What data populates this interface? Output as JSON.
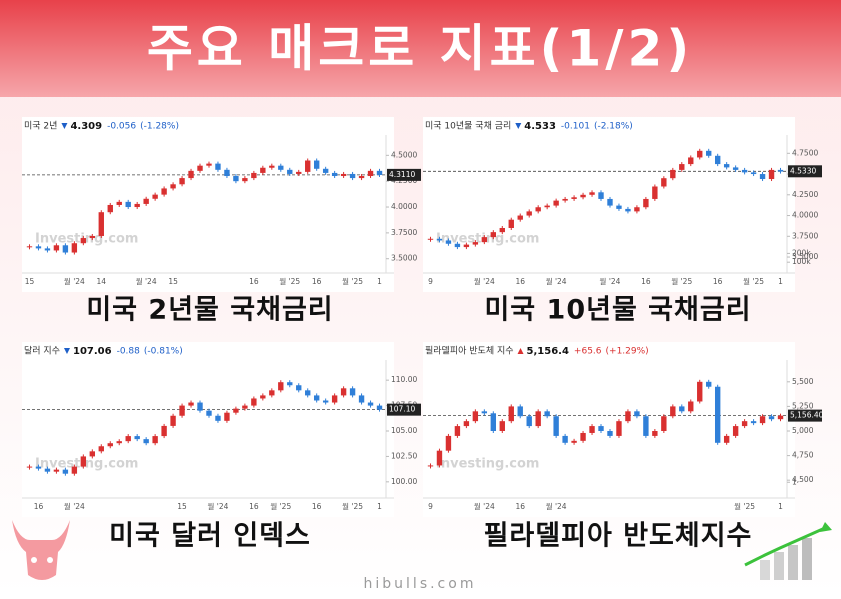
{
  "header": {
    "title": "주요 매크로 지표(1/2)"
  },
  "footer": {
    "site": "hibulls.com"
  },
  "charts": [
    {
      "type": "candlestick",
      "name": "미국 2년",
      "price": "4.309",
      "change": "-0.056",
      "pct": "(-1.28%)",
      "direction": "down",
      "change_color": "#1e5fc8",
      "caption": "미국 2년물 국채금리",
      "watermark": "Investing.com",
      "up_color": "#d93030",
      "down_color": "#2f7fd8",
      "current": {
        "value": 4.311,
        "label": "4.3110"
      },
      "ylim": [
        3.42,
        4.6
      ],
      "yticks": [
        {
          "value": 3.5,
          "label": "3.5000"
        },
        {
          "value": 3.75,
          "label": "3.7500"
        },
        {
          "value": 4.0,
          "label": "4.0000"
        },
        {
          "value": 4.25,
          "label": "4.2500"
        },
        {
          "value": 4.5,
          "label": "4.5000"
        }
      ],
      "categories": [
        "15",
        null,
        null,
        null,
        null,
        "월 '24",
        null,
        null,
        "14",
        null,
        null,
        null,
        null,
        "월 '24",
        null,
        null,
        "15",
        null,
        null,
        null,
        null,
        null,
        null,
        null,
        null,
        "16",
        null,
        null,
        null,
        "월 '25",
        null,
        null,
        "16",
        null,
        null,
        null,
        "월 '25",
        null,
        null,
        "1"
      ],
      "values": [
        3.62,
        3.6,
        3.58,
        3.63,
        3.56,
        3.65,
        3.7,
        3.72,
        3.95,
        4.02,
        4.05,
        4.0,
        4.03,
        4.08,
        4.12,
        4.18,
        4.22,
        4.28,
        4.35,
        4.4,
        4.42,
        4.36,
        4.3,
        4.25,
        4.28,
        4.33,
        4.38,
        4.4,
        4.36,
        4.32,
        4.34,
        4.45,
        4.37,
        4.33,
        4.3,
        4.32,
        4.28,
        4.3,
        4.35,
        4.31
      ]
    },
    {
      "type": "candlestick",
      "name": "미국 10년물 국채 금리",
      "price": "4.533",
      "change": "-0.101",
      "pct": "(-2.18%)",
      "direction": "down",
      "change_color": "#1e5fc8",
      "caption": "미국 10년물 국채금리",
      "watermark": "Investing.com",
      "up_color": "#d93030",
      "down_color": "#2f7fd8",
      "current": {
        "value": 4.533,
        "label": "4.5330"
      },
      "ylim": [
        3.38,
        4.85
      ],
      "yticks": [
        {
          "value": 3.5,
          "label": "3.5000"
        },
        {
          "value": 3.75,
          "label": "3.7500"
        },
        {
          "value": 4.0,
          "label": "4.0000"
        },
        {
          "value": 4.25,
          "label": "4.2500"
        },
        {
          "value": 4.5,
          "label": "4.5000"
        },
        {
          "value": 4.75,
          "label": "4.7500"
        }
      ],
      "volume_lim": [
        0,
        250000
      ],
      "volume_ticks": [
        {
          "value": 100000,
          "label": "100k"
        },
        {
          "value": 200000,
          "label": "200k"
        }
      ],
      "categories": [
        "9",
        null,
        null,
        null,
        null,
        null,
        "월 '24",
        null,
        null,
        null,
        "16",
        null,
        null,
        null,
        "월 '24",
        null,
        null,
        null,
        null,
        null,
        "월 '24",
        null,
        null,
        null,
        "16",
        null,
        null,
        null,
        "월 '25",
        null,
        null,
        null,
        "16",
        null,
        null,
        null,
        "월 '25",
        null,
        null,
        "1"
      ],
      "values": [
        3.72,
        3.7,
        3.66,
        3.62,
        3.65,
        3.68,
        3.74,
        3.8,
        3.85,
        3.95,
        4.0,
        4.05,
        4.1,
        4.12,
        4.18,
        4.2,
        4.22,
        4.25,
        4.28,
        4.2,
        4.12,
        4.08,
        4.05,
        4.1,
        4.2,
        4.35,
        4.45,
        4.55,
        4.62,
        4.7,
        4.78,
        4.72,
        4.62,
        4.58,
        4.55,
        4.52,
        4.5,
        4.44,
        4.55,
        4.53
      ]
    },
    {
      "type": "candlestick",
      "name": "달러 지수",
      "price": "107.06",
      "change": "-0.88",
      "pct": "(-0.81%)",
      "direction": "down",
      "change_color": "#1e5fc8",
      "caption": "미국 달러 인덱스",
      "watermark": "Investing.com",
      "up_color": "#d93030",
      "down_color": "#2f7fd8",
      "current": {
        "value": 107.1,
        "label": "107.10"
      },
      "ylim": [
        99,
        111
      ],
      "yticks": [
        {
          "value": 100,
          "label": "100.00"
        },
        {
          "value": 102.5,
          "label": "102.50"
        },
        {
          "value": 105,
          "label": "105.00"
        },
        {
          "value": 107.5,
          "label": "107.50"
        },
        {
          "value": 110,
          "label": "110.00"
        }
      ],
      "categories": [
        null,
        "16",
        null,
        null,
        null,
        "월 '24",
        null,
        null,
        null,
        null,
        null,
        null,
        null,
        null,
        null,
        null,
        null,
        "15",
        null,
        null,
        null,
        "월 '24",
        null,
        null,
        null,
        "16",
        null,
        null,
        "월 '25",
        null,
        null,
        null,
        "16",
        null,
        null,
        null,
        "월 '25",
        null,
        null,
        "1"
      ],
      "values": [
        101.5,
        101.3,
        101.0,
        101.2,
        100.8,
        101.5,
        102.5,
        103.0,
        103.5,
        103.8,
        104.0,
        104.5,
        104.2,
        103.8,
        104.5,
        105.5,
        106.5,
        107.5,
        107.8,
        107.0,
        106.5,
        106.0,
        106.8,
        107.2,
        107.5,
        108.2,
        108.5,
        109.0,
        109.8,
        109.5,
        109.0,
        108.5,
        108.0,
        107.8,
        108.5,
        109.2,
        108.5,
        107.8,
        107.5,
        107.1
      ]
    },
    {
      "type": "candlestick",
      "name": "필라델피아 반도체 지수",
      "price": "5,156.4",
      "change": "+65.6",
      "pct": "(+1.29%)",
      "direction": "up",
      "change_color": "#d93030",
      "caption": "필라델피아 반도체지수",
      "watermark": "Investing.com",
      "up_color": "#d93030",
      "down_color": "#2f7fd8",
      "current": {
        "value": 5156.4,
        "label": "5,156.40"
      },
      "ylim": [
        4380,
        5620
      ],
      "yticks": [
        {
          "value": 4500,
          "label": "4,500"
        },
        {
          "value": 4750,
          "label": "4,750"
        },
        {
          "value": 5000,
          "label": "5,000"
        },
        {
          "value": 5250,
          "label": "5,250"
        },
        {
          "value": 5500,
          "label": "5,500"
        }
      ],
      "volume_lim": [
        0,
        1.6
      ],
      "volume_ticks": [
        1
      ],
      "categories": [
        "9",
        null,
        null,
        null,
        null,
        null,
        "월 '24",
        null,
        null,
        null,
        "16",
        null,
        null,
        null,
        "월 '24",
        null,
        null,
        null,
        null,
        null,
        null,
        null,
        null,
        null,
        null,
        null,
        null,
        null,
        null,
        null,
        null,
        null,
        null,
        null,
        null,
        "월 '25",
        null,
        null,
        null,
        "1"
      ],
      "values": [
        4650,
        4800,
        4950,
        5050,
        5100,
        5200,
        5180,
        5000,
        5100,
        5250,
        5150,
        5050,
        5200,
        5150,
        4950,
        4880,
        4900,
        4980,
        5050,
        5000,
        4950,
        5100,
        5200,
        5150,
        4950,
        5000,
        5150,
        5250,
        5200,
        5300,
        5500,
        5450,
        4880,
        4950,
        5050,
        5100,
        5080,
        5150,
        5120,
        5156
      ]
    }
  ]
}
